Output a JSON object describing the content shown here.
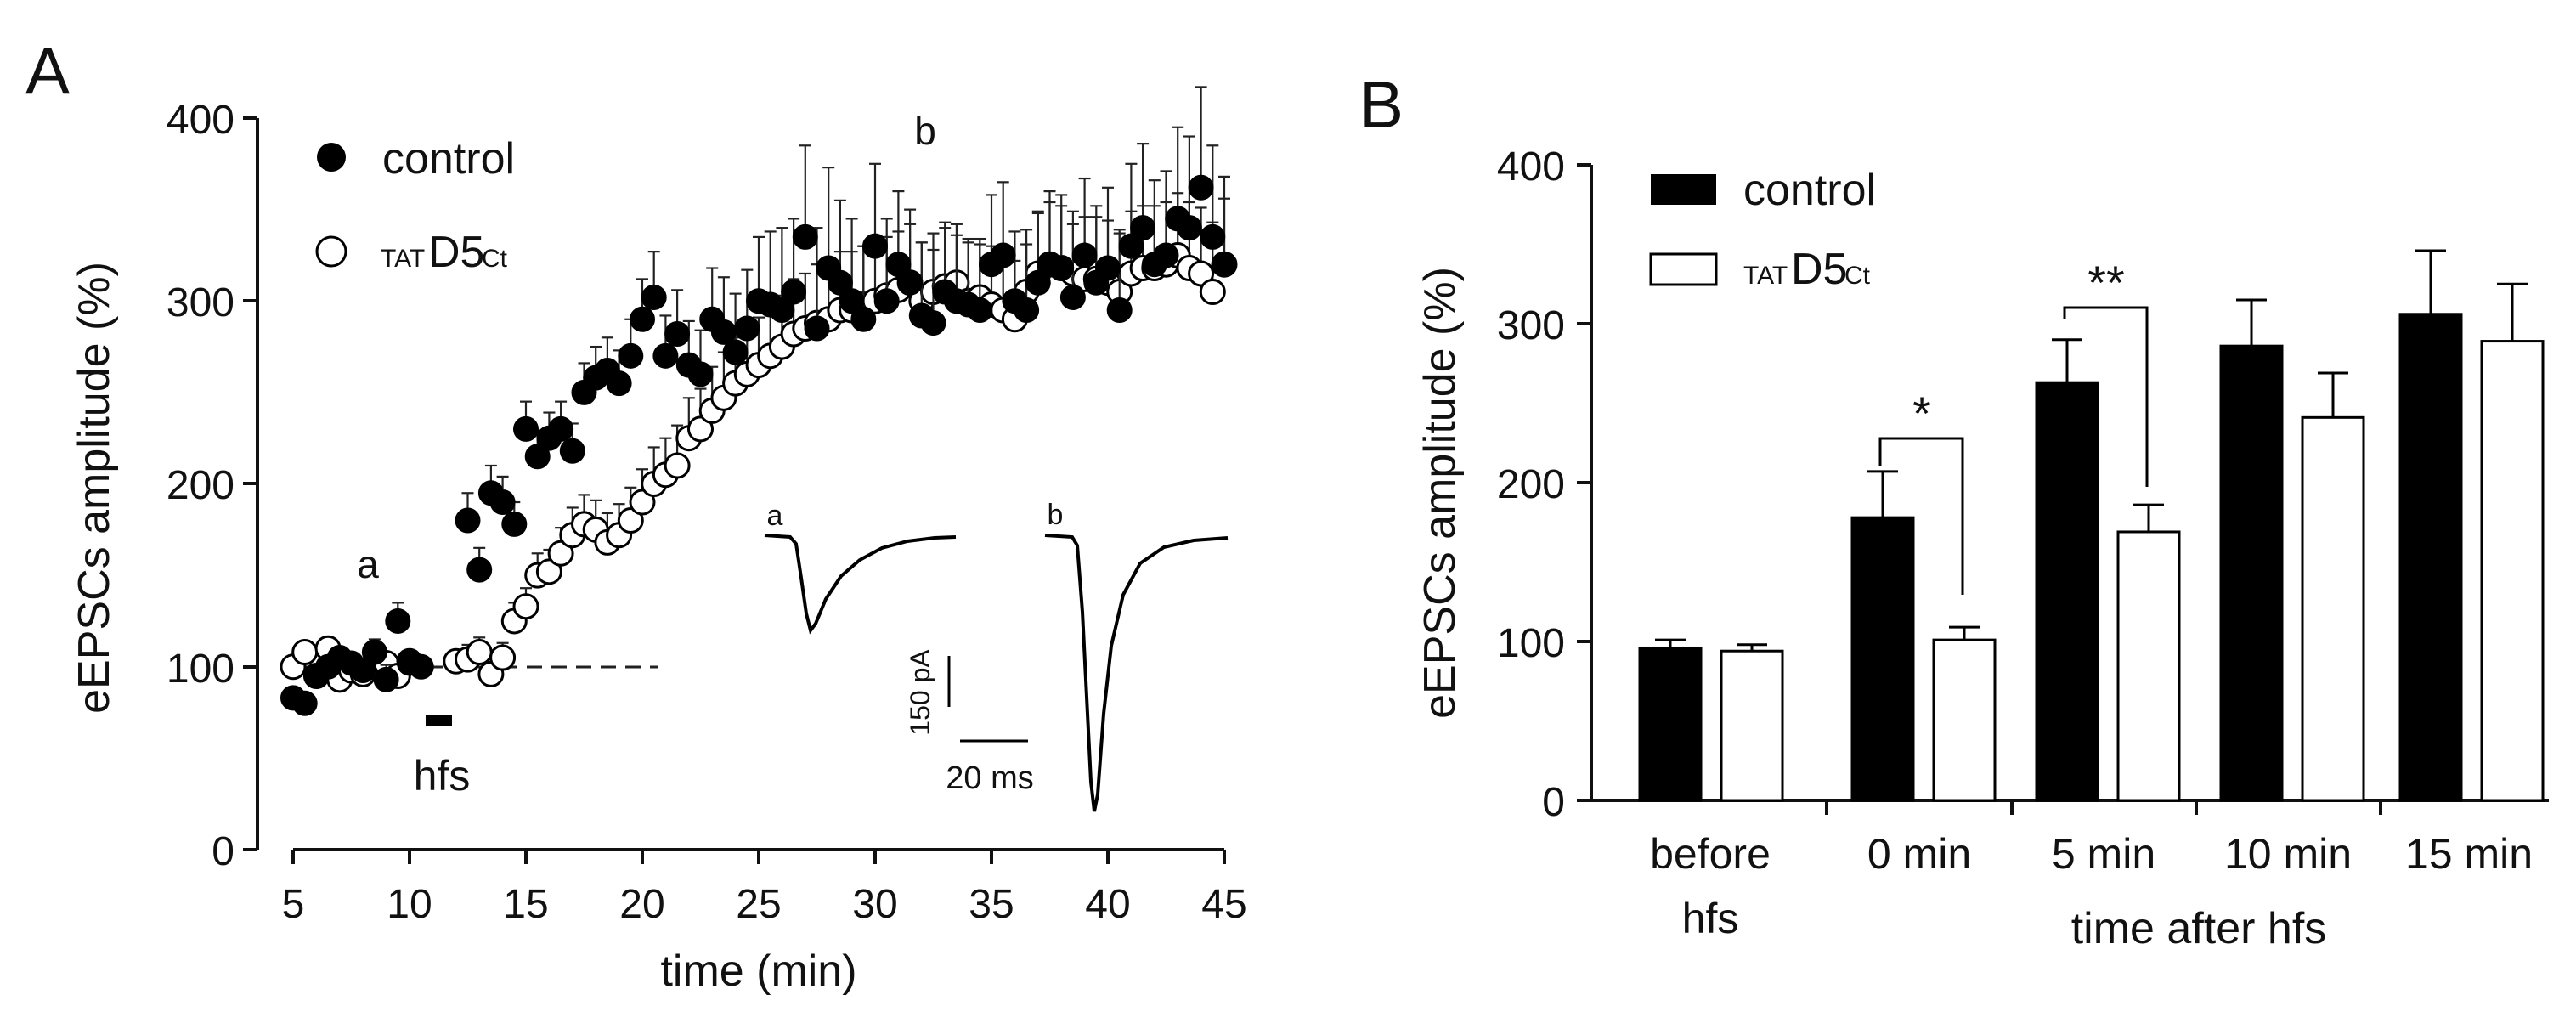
{
  "panelA": {
    "label": "A",
    "ylabel": "eEPSCs amplitude (%)",
    "xlabel": "time (min)",
    "yticks": [
      "0",
      "100",
      "200",
      "300",
      "400"
    ],
    "xticks": [
      "5",
      "10",
      "15",
      "20",
      "25",
      "30",
      "35",
      "40",
      "45"
    ],
    "legend": {
      "control": "control",
      "treat_prefix": "TAT",
      "treat_main": "D5",
      "treat_suffix": "Ct"
    },
    "hfs_label": "hfs",
    "mark_a": "a",
    "mark_b": "b",
    "inset": {
      "a": "a",
      "b": "b",
      "scale_y": "150 pA",
      "scale_x": "20 ms"
    }
  },
  "panelB": {
    "label": "B",
    "ylabel": "eEPSCs amplitude (%)",
    "yticks": [
      "0",
      "100",
      "200",
      "300",
      "400"
    ],
    "cat1_line1": "before",
    "cat1_line2": "hfs",
    "cats": [
      "0 min",
      "5 min",
      "10 min",
      "15 min"
    ],
    "group_label": "time after hfs",
    "legend": {
      "control": "control",
      "treat_prefix": "TAT",
      "treat_main": "D5",
      "treat_suffix": "Ct"
    },
    "sig1": "*",
    "sig2": "**"
  },
  "chart_data": [
    {
      "type": "scatter",
      "title": "A",
      "xlabel": "time (min)",
      "ylabel": "eEPSCs amplitude (%)",
      "xlim": [
        4.5,
        45.5
      ],
      "ylim": [
        0,
        400
      ],
      "baseline": 100,
      "hfs_interval": [
        10.7,
        11.7
      ],
      "series": [
        {
          "name": "control",
          "marker": "filled",
          "x": [
            5,
            5.5,
            6,
            6.5,
            7,
            7.5,
            8,
            8.5,
            9,
            9.5,
            10,
            10.5,
            12.5,
            13,
            13.5,
            14,
            14.5,
            15,
            15.5,
            16,
            16.5,
            17,
            17.5,
            18,
            18.5,
            19,
            19.5,
            20,
            20.5,
            21,
            21.5,
            22,
            22.5,
            23,
            23.5,
            24,
            24.5,
            25,
            25.5,
            26,
            26.5,
            27,
            27.5,
            28,
            28.5,
            29,
            29.5,
            30,
            30.5,
            31,
            31.5,
            32,
            32.5,
            33,
            33.5,
            34,
            34.5,
            35,
            35.5,
            36,
            36.5,
            37,
            37.5,
            38,
            38.5,
            39,
            39.5,
            40,
            40.5,
            41,
            41.5,
            42,
            42.5,
            43,
            43.5,
            44,
            44.5,
            45
          ],
          "y": [
            83,
            80,
            95,
            100,
            105,
            102,
            98,
            108,
            93,
            125,
            102,
            100,
            180,
            153,
            195,
            190,
            178,
            230,
            215,
            225,
            230,
            218,
            250,
            258,
            262,
            255,
            270,
            290,
            302,
            270,
            282,
            265,
            260,
            290,
            283,
            272,
            285,
            300,
            298,
            295,
            305,
            335,
            285,
            318,
            310,
            300,
            290,
            330,
            300,
            320,
            310,
            292,
            288,
            305,
            300,
            298,
            295,
            320,
            325,
            300,
            295,
            310,
            320,
            318,
            302,
            325,
            310,
            318,
            295,
            330,
            340,
            320,
            325,
            345,
            340,
            362,
            335,
            320
          ],
          "err": [
            5,
            5,
            6,
            5,
            6,
            6,
            5,
            7,
            8,
            10,
            6,
            6,
            15,
            12,
            15,
            14,
            12,
            15,
            14,
            14,
            15,
            15,
            16,
            17,
            18,
            18,
            20,
            22,
            25,
            22,
            24,
            24,
            24,
            28,
            30,
            32,
            32,
            35,
            40,
            45,
            40,
            50,
            55,
            55,
            45,
            45,
            40,
            45,
            45,
            40,
            40,
            40,
            40,
            38,
            36,
            36,
            36,
            38,
            40,
            38,
            36,
            38,
            40,
            40,
            40,
            42,
            42,
            44,
            42,
            45,
            46,
            46,
            46,
            50,
            50,
            55,
            50,
            48
          ]
        },
        {
          "name": "TAT D5 Ct",
          "marker": "open",
          "x": [
            5,
            5.5,
            6,
            6.5,
            7,
            7.5,
            8,
            8.5,
            9,
            9.5,
            10,
            12,
            12.5,
            13,
            13.5,
            14,
            14.5,
            15,
            15.5,
            16,
            16.5,
            17,
            17.5,
            18,
            18.5,
            19,
            19.5,
            20,
            20.5,
            21,
            21.5,
            22,
            22.5,
            23,
            23.5,
            24,
            24.5,
            25,
            25.5,
            26,
            26.5,
            27,
            27.5,
            28,
            28.5,
            29,
            29.5,
            30,
            30.5,
            31,
            31.5,
            32,
            32.5,
            33,
            33.5,
            34,
            34.5,
            35,
            35.5,
            36,
            36.5,
            37,
            37.5,
            38,
            38.5,
            39,
            39.5,
            40,
            40.5,
            41,
            41.5,
            42,
            42.5,
            43,
            43.5,
            44,
            44.5,
            45
          ],
          "y": [
            100,
            108,
            95,
            110,
            93,
            98,
            96,
            100,
            102,
            95,
            103,
            103,
            104,
            108,
            96,
            105,
            125,
            133,
            150,
            152,
            162,
            172,
            178,
            175,
            168,
            172,
            180,
            190,
            200,
            205,
            210,
            225,
            230,
            240,
            247,
            255,
            260,
            265,
            270,
            275,
            282,
            285,
            288,
            290,
            295,
            295,
            298,
            300,
            303,
            306,
            310,
            300,
            305,
            308,
            310,
            300,
            302,
            298,
            295,
            290,
            305,
            315,
            320,
            318,
            315,
            312,
            312,
            310,
            305,
            315,
            318,
            318,
            320,
            325,
            318,
            315,
            305,
            320
          ],
          "err": [
            5,
            5,
            5,
            5,
            5,
            5,
            5,
            5,
            5,
            5,
            5,
            5,
            8,
            8,
            8,
            8,
            10,
            10,
            12,
            12,
            14,
            15,
            16,
            16,
            16,
            17,
            18,
            18,
            20,
            20,
            22,
            22,
            22,
            24,
            25,
            25,
            26,
            26,
            28,
            28,
            30,
            30,
            32,
            32,
            32,
            32,
            32,
            32,
            32,
            32,
            32,
            32,
            32,
            32,
            32,
            32,
            32,
            32,
            32,
            32,
            34,
            34,
            34,
            34,
            34,
            34,
            34,
            34,
            34,
            34,
            34,
            34,
            34,
            34,
            36,
            36,
            38,
            36
          ]
        }
      ]
    },
    {
      "type": "bar",
      "title": "B",
      "ylabel": "eEPSCs amplitude (%)",
      "xlabel": "time after hfs",
      "ylim": [
        0,
        400
      ],
      "categories": [
        "before hfs",
        "0 min",
        "5 min",
        "10 min",
        "15 min"
      ],
      "series": [
        {
          "name": "control",
          "fill": "#000000",
          "values": [
            96,
            178,
            263,
            286,
            306
          ],
          "errors": [
            5,
            29,
            27,
            29,
            40
          ]
        },
        {
          "name": "TAT D5 Ct",
          "fill": "#ffffff",
          "values": [
            94,
            101,
            169,
            241,
            289
          ],
          "errors": [
            4,
            8,
            17,
            28,
            36
          ]
        }
      ],
      "significance": [
        {
          "category": "0 min",
          "label": "*"
        },
        {
          "category": "5 min",
          "label": "**"
        }
      ]
    }
  ]
}
